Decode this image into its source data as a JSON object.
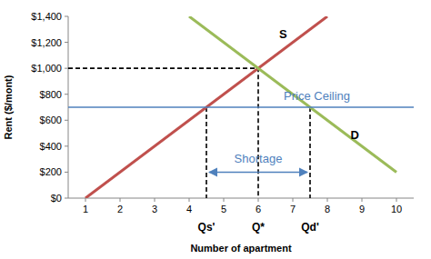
{
  "chart_data": {
    "type": "line",
    "x_label": "Number of apartment",
    "y_label": "Rent ($/mont)",
    "xlim": [
      0.5,
      10.5
    ],
    "xticks": [
      1,
      2,
      3,
      4,
      5,
      6,
      7,
      8,
      9,
      10
    ],
    "ylim": [
      0,
      1400
    ],
    "yticks": [
      {
        "value": 0,
        "label": "$0"
      },
      {
        "value": 200,
        "label": "$200"
      },
      {
        "value": 400,
        "label": "$400"
      },
      {
        "value": 600,
        "label": "$600"
      },
      {
        "value": 800,
        "label": "$800"
      },
      {
        "value": 1000,
        "label": "$1,000"
      },
      {
        "value": 1200,
        "label": "$1,200"
      },
      {
        "value": 1400,
        "label": "$1,400"
      }
    ],
    "grid": false,
    "series": [
      {
        "name": "S",
        "color": "#c0504d",
        "x": [
          1,
          8
        ],
        "values": [
          0,
          1400
        ]
      },
      {
        "name": "D",
        "color": "#9bbb59",
        "x": [
          4,
          10
        ],
        "values": [
          1400,
          200
        ]
      },
      {
        "name": "Price Ceiling",
        "color": "#4f81bd",
        "x": [
          0.5,
          10.5
        ],
        "values": [
          700,
          700
        ]
      }
    ],
    "guides": [
      {
        "x": [
          0.5,
          6,
          6
        ],
        "y": [
          1000,
          1000,
          0
        ],
        "line_style": "dashed"
      },
      {
        "x": [
          4.5,
          4.5
        ],
        "y": [
          700,
          0
        ],
        "line_style": "dashed"
      },
      {
        "x": [
          7.5,
          7.5
        ],
        "y": [
          700,
          0
        ],
        "line_style": "dashed"
      }
    ],
    "quantity_labels": [
      {
        "value": 4.5,
        "label": "Qs'"
      },
      {
        "value": 6,
        "label": "Q*"
      },
      {
        "value": 7.5,
        "label": "Qd'"
      }
    ],
    "shortage": {
      "label": "Shortage",
      "x": [
        4.5,
        7.5
      ],
      "y": 200,
      "color": "#4f81bd"
    }
  }
}
